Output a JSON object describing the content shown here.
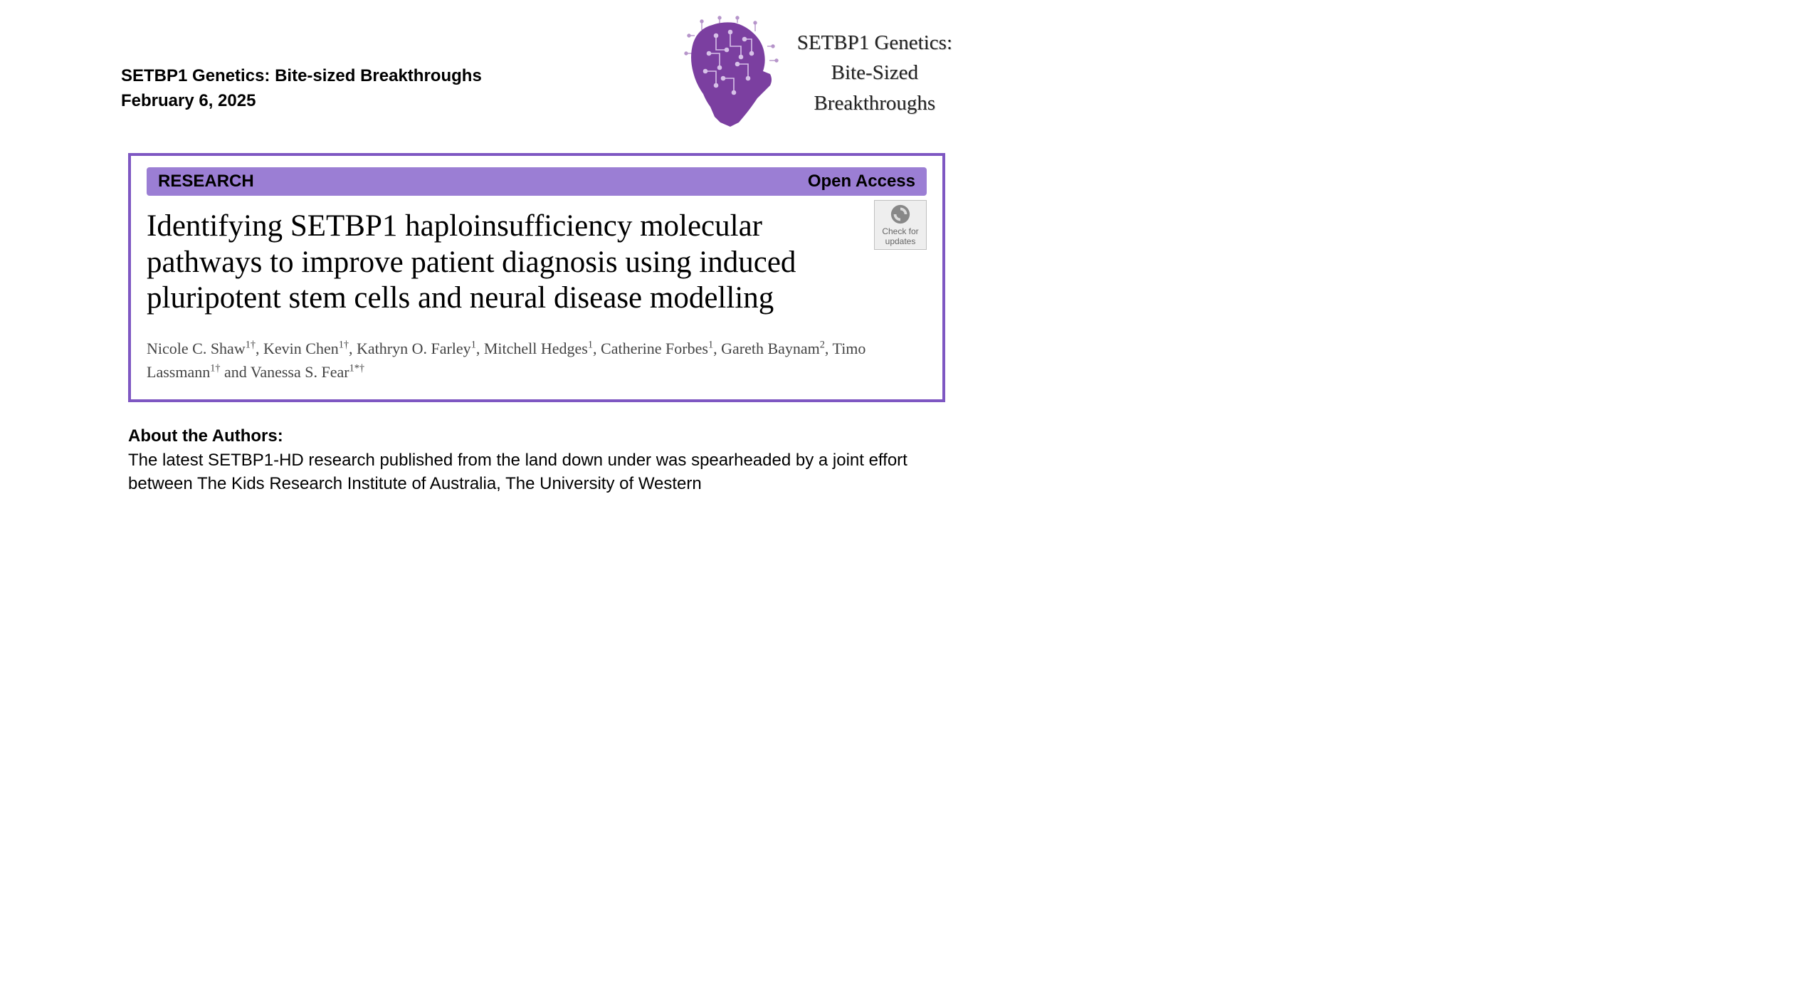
{
  "colors": {
    "purple_primary": "#7e57c2",
    "purple_bar": "#9b7ed4",
    "purple_logo": "#7b3fa0",
    "text_black": "#000000",
    "text_gray": "#444444",
    "bg_white": "#ffffff",
    "badge_bg": "#eeeeee",
    "badge_border": "#bfbfbf",
    "badge_text": "#666666"
  },
  "header": {
    "line1": "SETBP1 Genetics: Bite-sized Breakthroughs",
    "line2": "February 6, 2025"
  },
  "logo": {
    "line1": "SETBP1 Genetics:",
    "line2": "Bite-Sized",
    "line3": "Breakthroughs"
  },
  "article": {
    "research_label": "RESEARCH",
    "access_label": "Open Access",
    "check_updates_label": "Check for updates",
    "title": "Identifying SETBP1 haploinsufficiency molecular pathways to improve patient diagnosis using induced pluripotent stem cells and neural disease modelling",
    "authors_html": "Nicole C. Shaw<sup>1†</sup>, Kevin Chen<sup>1†</sup>, Kathryn O. Farley<sup>1</sup>, Mitchell Hedges<sup>1</sup>, Catherine Forbes<sup>1</sup>, Gareth Baynam<sup>2</sup>, Timo Lassmann<sup>1†</sup> and Vanessa S. Fear<sup>1*†</sup>"
  },
  "about": {
    "heading": "About the Authors:",
    "body": "The latest SETBP1-HD research published from the land down under was spearheaded by a joint effort between The Kids Research Institute of Australia, The University of Western"
  }
}
